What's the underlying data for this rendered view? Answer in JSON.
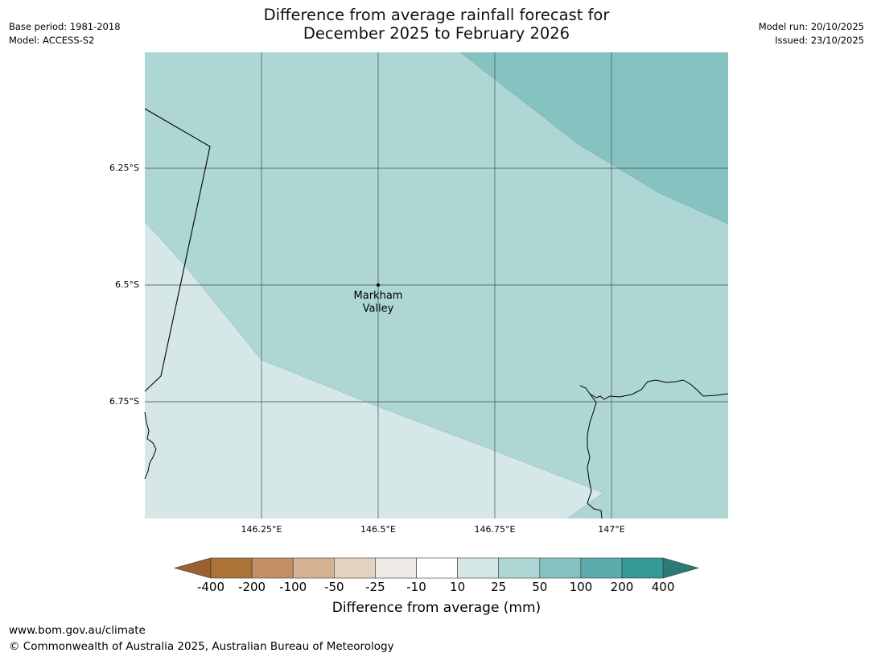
{
  "title": {
    "line1": "Difference from average rainfall forecast for",
    "line2": "December 2025 to February 2026"
  },
  "meta_left": {
    "base_period": "Base period: 1981-2018",
    "model": "Model: ACCESS-S2"
  },
  "meta_right": {
    "model_run": "Model run: 20/10/2025",
    "issued": "Issued: 23/10/2025"
  },
  "map": {
    "latitude_labels": [
      "6.25°S",
      "6.5°S",
      "6.75°S"
    ],
    "longitude_labels": [
      "146.25°E",
      "146.5°E",
      "146.75°E",
      "147°E"
    ],
    "place": {
      "line1": "Markham",
      "line2": "Valley"
    },
    "fill_colors": {
      "band_10_25": "#d5e8e7",
      "band_25_50": "#aed6d5",
      "band_50_100": "#85c2c0"
    }
  },
  "colorbar": {
    "tick_labels": [
      "-400",
      "-200",
      "-100",
      "-50",
      "-25",
      "-10",
      "10",
      "25",
      "50",
      "100",
      "200",
      "400"
    ],
    "colors": [
      "#9b6130",
      "#ad7439",
      "#c39065",
      "#d4b292",
      "#e6d2c0",
      "#eeeae5",
      "#ffffff",
      "#d5e8e7",
      "#aed6d5",
      "#85c2c0",
      "#5bacab",
      "#339a97",
      "#2b7a78"
    ],
    "label": "Difference from average (mm)"
  },
  "footer": {
    "url": "www.bom.gov.au/climate",
    "copyright": "© Commonwealth of Australia 2025, Australian Bureau of Meteorology"
  }
}
